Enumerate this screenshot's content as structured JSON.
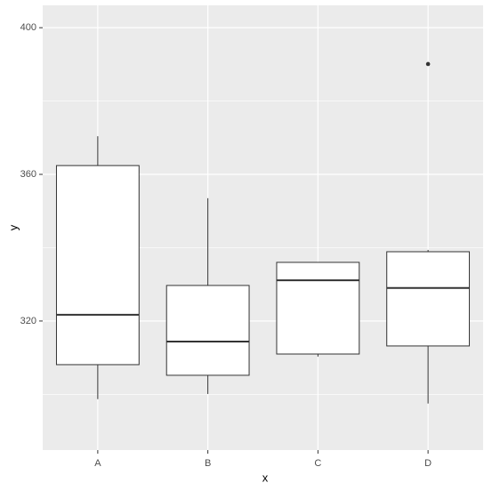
{
  "chart_data": {
    "type": "boxplot",
    "x_label": "x",
    "y_label": "y",
    "categories": [
      "A",
      "B",
      "C",
      "D"
    ],
    "boxes": [
      {
        "min": 298.7,
        "q1": 308.1,
        "median": 321.7,
        "q3": 362.4,
        "max": 370.4,
        "outliers": []
      },
      {
        "min": 300.1,
        "q1": 305.2,
        "median": 314.4,
        "q3": 329.7,
        "max": 353.5,
        "outliers": []
      },
      {
        "min": 310.3,
        "q1": 311.0,
        "median": 331.1,
        "q3": 336.0,
        "max": 336.0,
        "outliers": []
      },
      {
        "min": 297.5,
        "q1": 313.2,
        "median": 329.0,
        "q3": 338.9,
        "max": 339.4,
        "outliers": [
          390.1
        ]
      }
    ],
    "ylim": [
      284.8,
      406.1
    ],
    "yticks": [
      320,
      360,
      400
    ],
    "minor_yticks": [
      300,
      340,
      380
    ],
    "grid": true,
    "color": "#ffffff"
  }
}
